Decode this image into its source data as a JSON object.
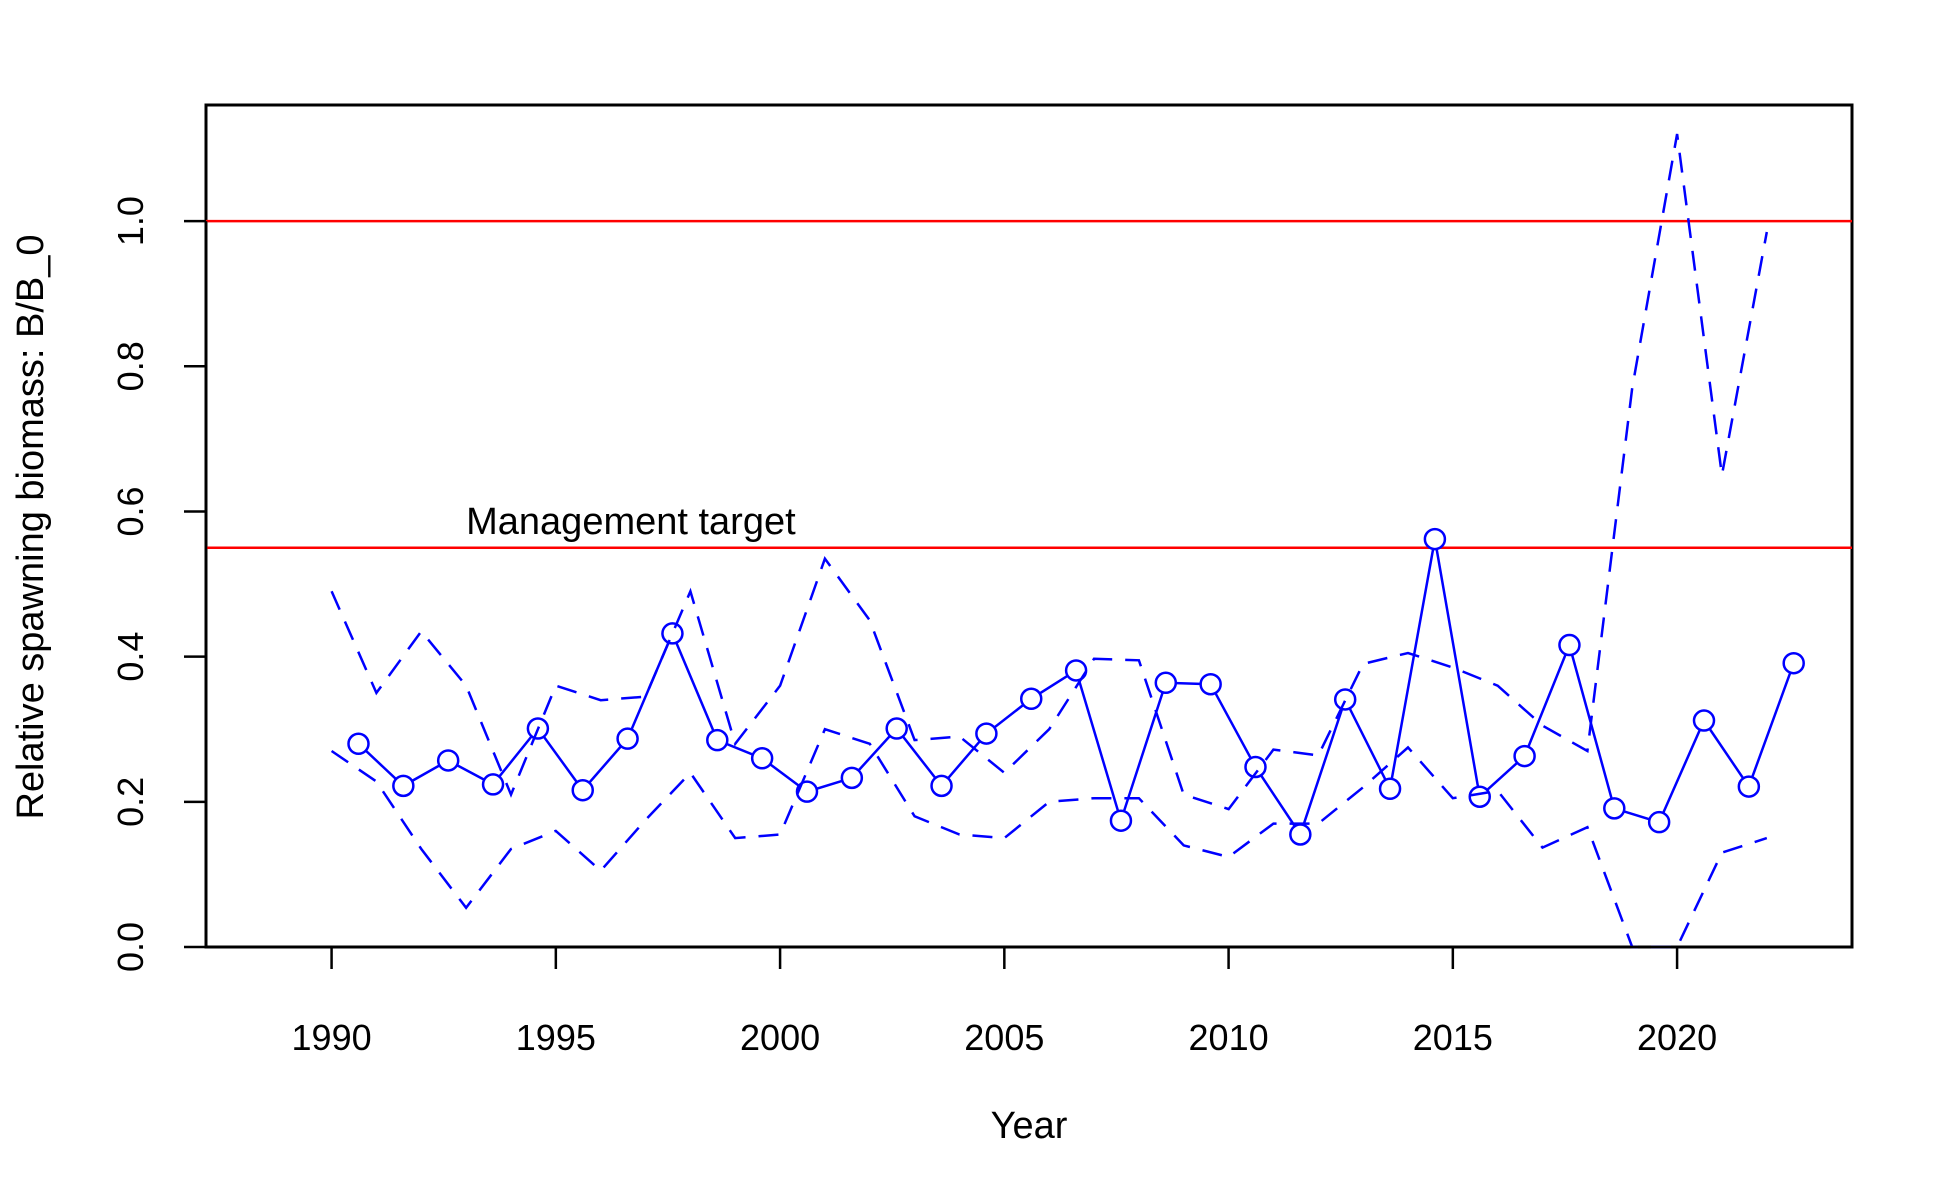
{
  "chart_data": {
    "type": "line",
    "title": "",
    "xlabel": "Year",
    "ylabel": "Relative spawning biomass: B/B_0",
    "xlim": [
      1987.2,
      2023.9
    ],
    "ylim": [
      0,
      1.16
    ],
    "x_ticks": [
      1990,
      1995,
      2000,
      2005,
      2010,
      2015,
      2020
    ],
    "y_ticks": [
      0.0,
      0.2,
      0.4,
      0.6,
      0.8,
      1.0
    ],
    "x_tick_labels": [
      "1990",
      "1995",
      "2000",
      "2005",
      "2010",
      "2015",
      "2020"
    ],
    "y_tick_labels": [
      "0.0",
      "0.2",
      "0.4",
      "0.6",
      "0.8",
      "1.0"
    ],
    "grid": false,
    "legend": "none",
    "reference_lines": [
      {
        "y": 1.0,
        "color": "#ff0000"
      },
      {
        "y": 0.55,
        "color": "#ff0000"
      }
    ],
    "annotation": {
      "text": "Management target",
      "x": 1993,
      "y": 0.55
    },
    "series": [
      {
        "style": "solid-points",
        "color": "#0000ff",
        "x": [
          1990.6,
          1991.6,
          1992.6,
          1993.6,
          1994.6,
          1995.6,
          1996.6,
          1997.6,
          1998.6,
          1999.6,
          2000.6,
          2001.6,
          2002.6,
          2003.6,
          2004.6,
          2005.6,
          2006.6,
          2007.6,
          2008.6,
          2009.6,
          2010.6,
          2011.6,
          2012.6,
          2013.6,
          2014.6,
          2015.6,
          2016.6,
          2017.6,
          2018.6,
          2019.6,
          2020.6,
          2021.6,
          2022.6
        ],
        "values": [
          0.28,
          0.222,
          0.257,
          0.224,
          0.301,
          0.216,
          0.287,
          0.432,
          0.285,
          0.26,
          0.214,
          0.233,
          0.301,
          0.222,
          0.294,
          0.342,
          0.381,
          0.174,
          0.364,
          0.362,
          0.248,
          0.155,
          0.341,
          0.218,
          0.562,
          0.207,
          0.263,
          0.416,
          0.191,
          0.172,
          0.312,
          0.221,
          0.391
        ]
      },
      {
        "style": "dashed",
        "color": "#0000ff",
        "x": [
          1990,
          1991,
          1992,
          1993,
          1994,
          1995,
          1996,
          1997,
          1998,
          1999,
          2000,
          2001,
          2002,
          2003,
          2004,
          2005,
          2006,
          2007,
          2008,
          2009,
          2010,
          2011,
          2012,
          2013,
          2014,
          2015,
          2016,
          2017,
          2018,
          2019,
          2020,
          2021,
          2022
        ],
        "values": [
          0.49,
          0.35,
          0.435,
          0.36,
          0.21,
          0.36,
          0.34,
          0.345,
          0.49,
          0.28,
          0.36,
          0.535,
          0.45,
          0.285,
          0.29,
          0.24,
          0.3,
          0.397,
          0.395,
          0.21,
          0.19,
          0.272,
          0.264,
          0.39,
          0.405,
          0.385,
          0.36,
          0.305,
          0.27,
          0.77,
          1.12,
          0.65,
          0.985
        ]
      },
      {
        "style": "dashed",
        "color": "#0000ff",
        "x": [
          1990,
          1991,
          1992,
          1993,
          1994,
          1995,
          1996,
          1997,
          1998,
          1999,
          2000,
          2001,
          2002,
          2003,
          2004,
          2005,
          2006,
          2007,
          2008,
          2009,
          2010,
          2011,
          2012,
          2013,
          2014,
          2015,
          2016,
          2017,
          2018,
          2019,
          2020,
          2021,
          2022
        ],
        "values": [
          0.27,
          0.228,
          0.135,
          0.054,
          0.135,
          0.16,
          0.105,
          0.175,
          0.24,
          0.15,
          0.155,
          0.3,
          0.28,
          0.18,
          0.155,
          0.15,
          0.2,
          0.205,
          0.205,
          0.14,
          0.124,
          0.17,
          0.17,
          0.22,
          0.275,
          0.205,
          0.215,
          0.137,
          0.165,
          0.0,
          0.0,
          0.13,
          0.15
        ]
      }
    ]
  }
}
